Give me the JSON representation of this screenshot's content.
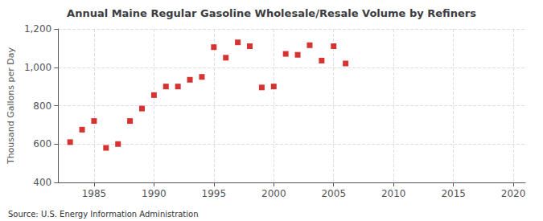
{
  "chart_data": {
    "type": "scatter",
    "title": "Annual Maine Regular Gasoline Wholesale/Resale Volume by Refiners",
    "ylabel": "Thousand Gallons per Day",
    "annotations": [
      "Source: U.S. Energy Information Administration"
    ],
    "x": [
      1983,
      1984,
      1985,
      1986,
      1987,
      1988,
      1989,
      1990,
      1991,
      1992,
      1993,
      1994,
      1995,
      1996,
      1997,
      1998,
      1999,
      2000,
      2001,
      2002,
      2003,
      2004,
      2005,
      2006
    ],
    "values": [
      610,
      675,
      720,
      580,
      600,
      720,
      785,
      855,
      900,
      900,
      935,
      950,
      1105,
      1050,
      1130,
      1110,
      895,
      900,
      1070,
      1065,
      1115,
      1035,
      1110,
      1020
    ],
    "color": "#cc0000",
    "marker": "square",
    "xlim": [
      1982,
      2021
    ],
    "xticks": [
      1985,
      1990,
      1995,
      2000,
      2005,
      2010,
      2015,
      2020
    ],
    "ylim": [
      400,
      1200
    ],
    "yticks": [
      400,
      600,
      800,
      {
        "value": 1000,
        "label": "1,000"
      },
      {
        "value": 1200,
        "label": "1,200"
      }
    ],
    "grid": true
  }
}
